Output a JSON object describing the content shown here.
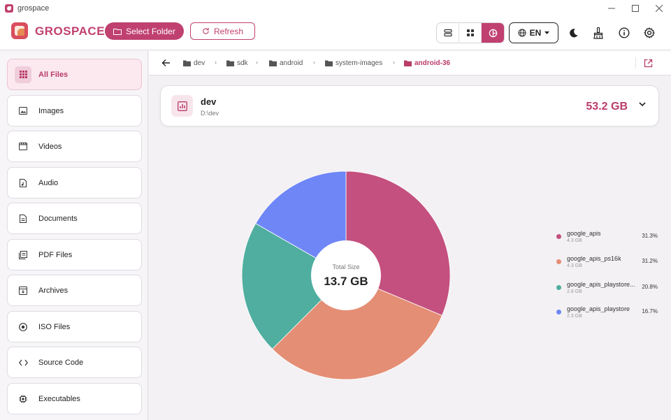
{
  "window": {
    "title": "grospace"
  },
  "header": {
    "brand": "GROSPACE",
    "select_folder_label": "Select Folder",
    "refresh_label": "Refresh",
    "language": "EN"
  },
  "sidebar": {
    "items": [
      {
        "label": "All Files",
        "icon": "grid-icon"
      },
      {
        "label": "Images",
        "icon": "image-icon"
      },
      {
        "label": "Videos",
        "icon": "video-icon"
      },
      {
        "label": "Audio",
        "icon": "audio-icon"
      },
      {
        "label": "Documents",
        "icon": "document-icon"
      },
      {
        "label": "PDF Files",
        "icon": "pdf-icon"
      },
      {
        "label": "Archives",
        "icon": "archive-icon"
      },
      {
        "label": "ISO Files",
        "icon": "disc-icon"
      },
      {
        "label": "Source Code",
        "icon": "code-icon"
      },
      {
        "label": "Executables",
        "icon": "chip-icon"
      }
    ]
  },
  "breadcrumb": [
    "dev",
    "sdk",
    "android",
    "system-images",
    "android-36"
  ],
  "folder": {
    "name": "dev",
    "path": "D:\\dev",
    "size": "53.2 GB"
  },
  "chart_center": {
    "label": "Total Size",
    "value": "13.7 GB"
  },
  "colors": {
    "accent": "#c0416f",
    "google_apis": "#c4507f",
    "google_apis_ps16k": "#e48e75",
    "google_apis_playstore_x": "#4fae9f",
    "google_apis_playstore": "#6f86f7"
  },
  "chart_data": {
    "type": "pie",
    "donut": true,
    "categories": [
      "google_apis",
      "google_apis_ps16k",
      "google_apis_playstore...",
      "google_apis_playstore"
    ],
    "values": [
      31.3,
      31.2,
      20.8,
      16.7
    ],
    "sizes": [
      "4.3 GB",
      "4.3 GB",
      "2.8 GB",
      "2.3 GB"
    ],
    "percent_labels": [
      "31.3%",
      "31.2%",
      "20.8%",
      "16.7%"
    ],
    "colors": [
      "#c4507f",
      "#e48e75",
      "#4fae9f",
      "#6f86f7"
    ],
    "legend_position": "right"
  }
}
